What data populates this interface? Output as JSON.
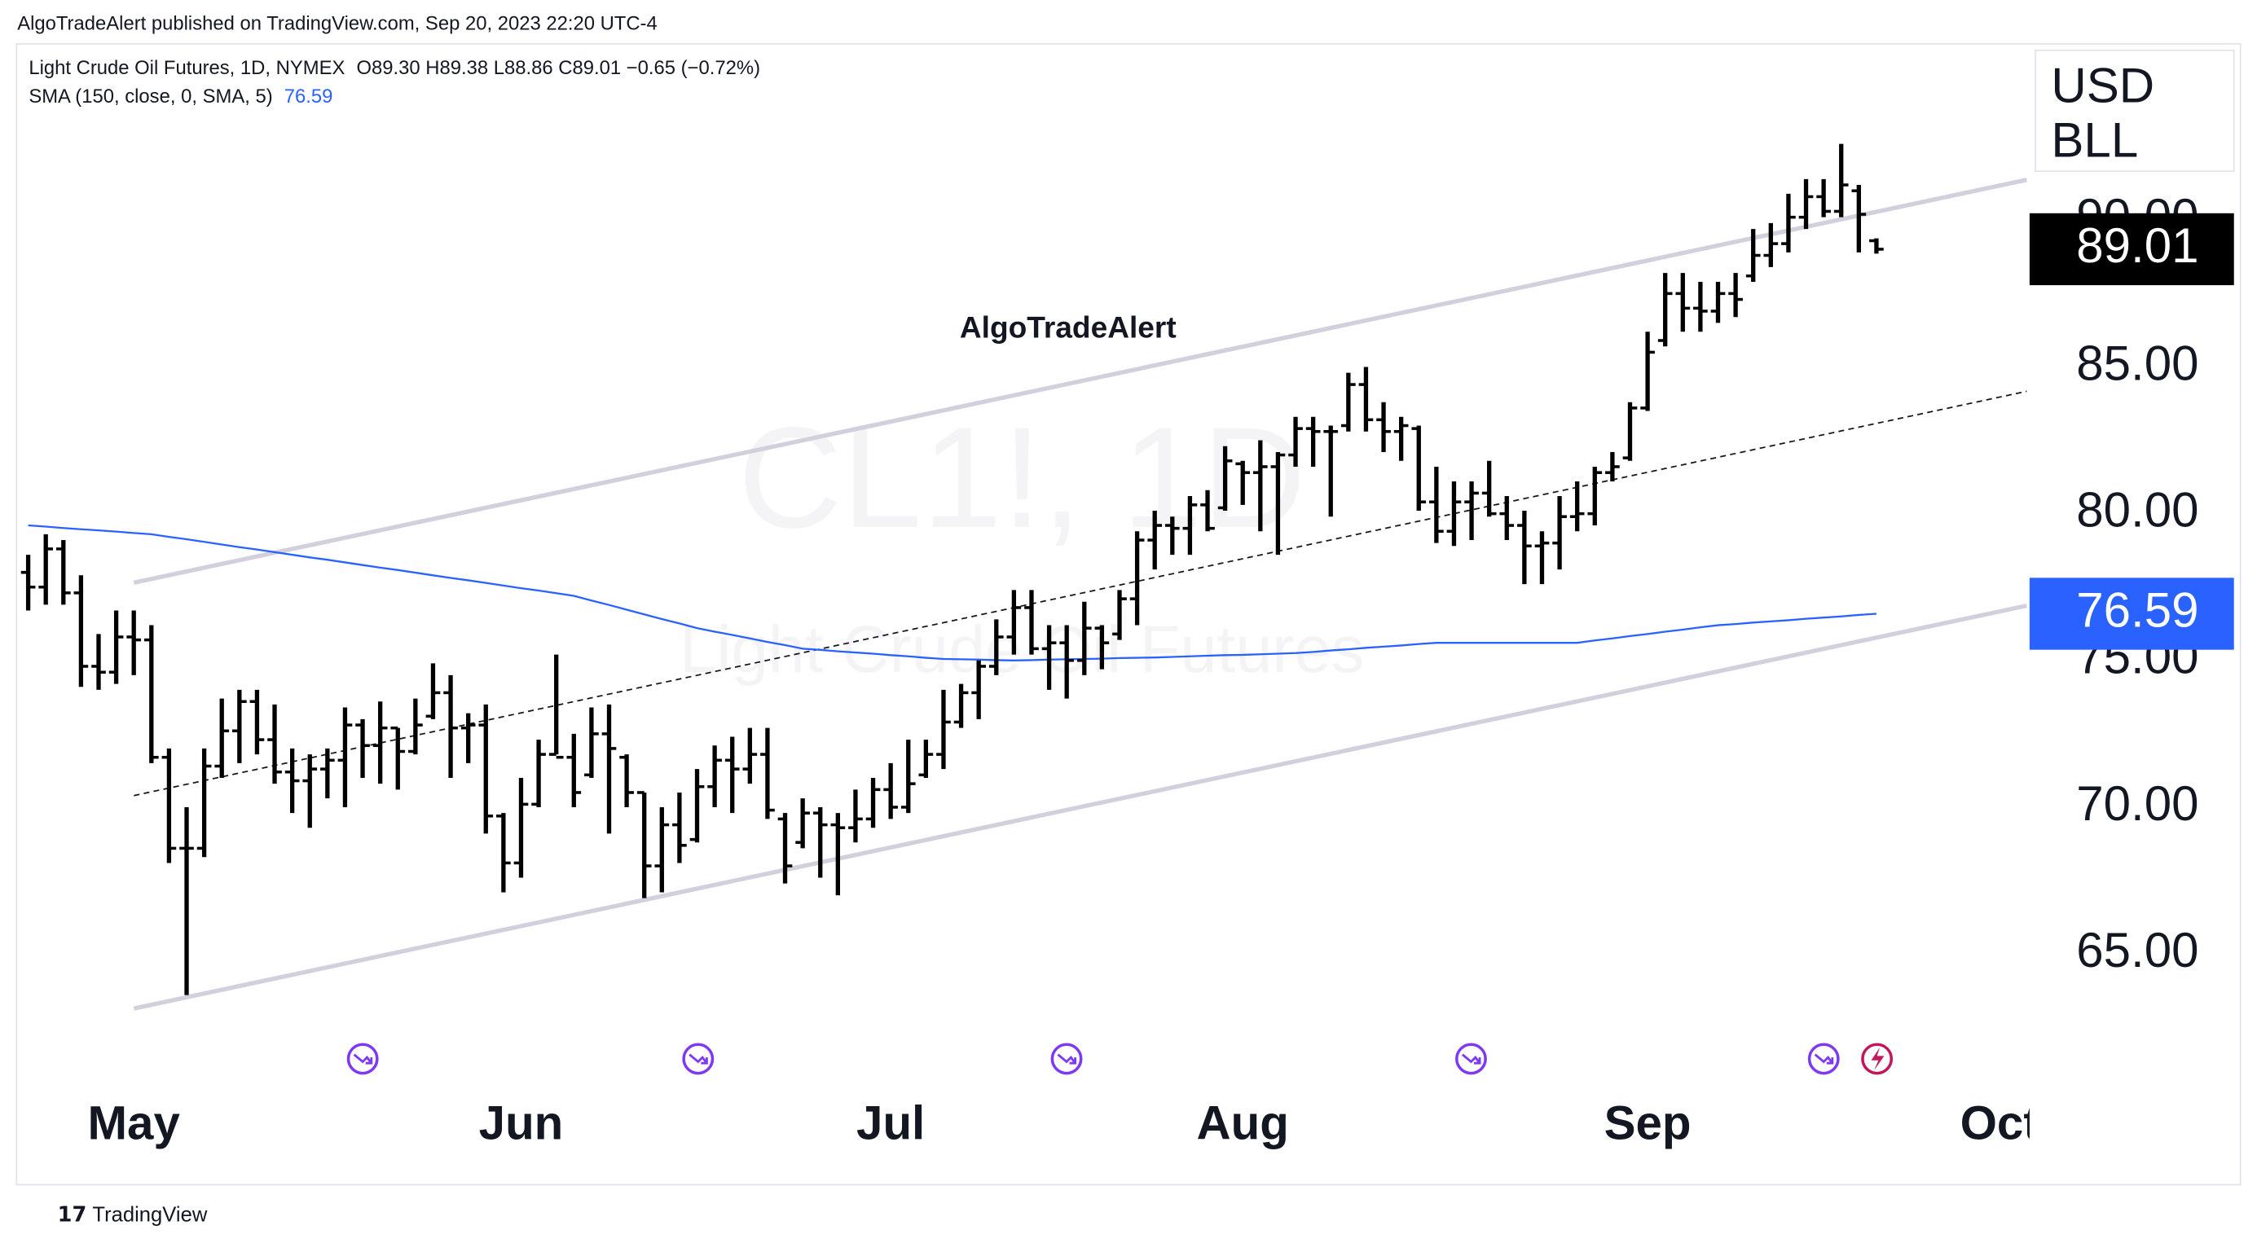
{
  "header": {
    "published": "AlgoTradeAlert published on TradingView.com, Sep 20, 2023 22:20 UTC-4",
    "brand": "TradingView"
  },
  "chart_data": {
    "type": "ohlc",
    "symbol": "Light Crude Oil Futures, 1D, NYMEX",
    "ohlc_legend": "O89.30  H89.38  L88.86  C89.01  −0.65 (−0.72%)",
    "watermark": "CL1!, 1D",
    "watermark_subtitle": "Light Crude Oil Futures",
    "annotation": "AlgoTradeAlert",
    "currency": [
      "USD",
      "BLL"
    ],
    "color": "#000000",
    "xlim": [
      -0.62,
      113.7
    ],
    "xticks": [
      {
        "value": 6,
        "label": "May"
      },
      {
        "value": 28,
        "label": "Jun"
      },
      {
        "value": 49,
        "label": "Jul"
      },
      {
        "value": 69,
        "label": "Aug"
      },
      {
        "value": 92,
        "label": "Sep"
      },
      {
        "value": 112,
        "label": "Oct"
      }
    ],
    "ylim": [
      60.25,
      96.03
    ],
    "yticks": [
      {
        "value": 65,
        "label": "65.00"
      },
      {
        "value": 70,
        "label": "70.00"
      },
      {
        "value": 75,
        "label": "75.00"
      },
      {
        "value": 80,
        "label": "80.00"
      },
      {
        "value": 85,
        "label": "85.00"
      },
      {
        "value": 90,
        "label": "90.00"
      }
    ],
    "grid": false,
    "open": [
      78.0,
      77.5,
      78.8,
      77.3,
      74.8,
      74.6,
      75.8,
      75.7,
      71.7,
      68.6,
      68.6,
      71.4,
      72.6,
      73.6,
      72.3,
      71.2,
      70.9,
      71.3,
      71.6,
      72.8,
      72.1,
      72.7,
      71.9,
      73.1,
      73.9,
      72.7,
      72.8,
      69.7,
      68.1,
      70.1,
      71.8,
      71.7,
      71.1,
      72.5,
      71.7,
      70.5,
      68.0,
      69.4,
      68.9,
      70.7,
      71.6,
      71.3,
      71.8,
      69.6,
      68.8,
      69.8,
      69.4,
      69.3,
      69.6,
      70.6,
      70.0,
      71.1,
      71.8,
      72.9,
      73.9,
      74.8,
      75.8,
      76.8,
      75.4,
      75.6,
      75.0,
      76.1,
      75.9,
      77.1,
      79.1,
      79.6,
      79.5,
      80.3,
      80.2,
      81.7,
      81.4,
      81.6,
      82.0,
      82.9,
      82.8,
      83.0,
      84.4,
      83.2,
      82.8,
      82.9,
      80.4,
      79.4,
      80.4,
      80.7,
      80.0,
      79.6,
      78.9,
      79.0,
      79.9,
      80.0,
      81.4,
      81.9,
      83.6,
      85.9,
      87.5,
      87.0,
      86.9,
      87.5,
      88.1,
      88.8,
      89.2,
      90.1,
      90.8,
      90.3,
      91.0,
      89.3
    ],
    "high": [
      78.6,
      79.3,
      79.1,
      77.9,
      75.9,
      76.7,
      76.7,
      76.2,
      72.0,
      70.0,
      72.0,
      73.7,
      74.0,
      74.0,
      73.5,
      72.0,
      71.8,
      72.0,
      73.4,
      73.0,
      73.6,
      72.7,
      73.7,
      74.9,
      74.5,
      73.2,
      73.5,
      69.8,
      71.0,
      72.3,
      75.2,
      72.5,
      73.4,
      73.5,
      71.8,
      70.5,
      70.0,
      70.5,
      71.3,
      72.1,
      72.4,
      72.7,
      72.7,
      69.8,
      70.3,
      70.0,
      69.8,
      70.6,
      71.0,
      71.5,
      72.3,
      72.3,
      74.0,
      74.2,
      75.0,
      76.4,
      77.4,
      77.4,
      76.2,
      76.2,
      77.0,
      76.2,
      77.4,
      79.4,
      80.1,
      79.9,
      80.6,
      80.8,
      82.3,
      81.8,
      82.5,
      82.1,
      83.3,
      83.3,
      83.0,
      84.8,
      85.0,
      83.8,
      83.3,
      83.0,
      81.6,
      81.1,
      81.1,
      81.8,
      80.6,
      80.1,
      79.4,
      80.6,
      81.1,
      81.6,
      82.1,
      83.8,
      86.2,
      88.2,
      88.2,
      87.9,
      87.9,
      88.2,
      89.7,
      89.9,
      90.9,
      91.4,
      91.4,
      92.6,
      91.2,
      89.38
    ],
    "low": [
      76.7,
      76.9,
      76.9,
      74.1,
      74.0,
      74.2,
      74.5,
      71.5,
      68.1,
      63.6,
      68.3,
      71.0,
      71.5,
      71.8,
      70.8,
      69.8,
      69.3,
      70.3,
      70.0,
      71.0,
      70.8,
      70.6,
      71.8,
      73.0,
      71.0,
      71.5,
      69.1,
      67.1,
      67.6,
      70.0,
      71.8,
      70.0,
      71.0,
      69.1,
      70.0,
      66.9,
      67.1,
      68.1,
      68.8,
      70.0,
      69.8,
      70.8,
      69.6,
      67.4,
      68.6,
      67.6,
      67.0,
      68.8,
      69.3,
      69.6,
      69.8,
      71.0,
      71.3,
      72.7,
      73.0,
      74.5,
      75.2,
      75.2,
      74.0,
      73.7,
      74.5,
      74.7,
      75.7,
      76.2,
      78.1,
      78.6,
      78.6,
      79.4,
      80.1,
      80.3,
      79.4,
      78.6,
      81.6,
      81.6,
      79.9,
      82.8,
      82.8,
      82.1,
      81.8,
      80.1,
      79.0,
      78.9,
      79.1,
      79.9,
      79.1,
      77.6,
      77.6,
      78.1,
      79.4,
      79.6,
      81.1,
      81.8,
      83.5,
      85.7,
      86.2,
      86.2,
      86.5,
      86.7,
      87.9,
      88.4,
      88.9,
      89.7,
      90.1,
      90.1,
      88.9,
      88.86
    ],
    "close": [
      77.5,
      78.8,
      77.3,
      74.8,
      74.6,
      75.8,
      75.7,
      71.7,
      68.6,
      68.6,
      71.4,
      72.6,
      73.6,
      72.3,
      71.2,
      70.9,
      71.3,
      71.6,
      72.8,
      72.1,
      72.7,
      71.9,
      72.8,
      73.9,
      72.7,
      72.8,
      69.7,
      68.1,
      70.1,
      71.8,
      71.7,
      70.5,
      72.5,
      72.0,
      70.5,
      68.0,
      69.4,
      68.7,
      70.7,
      71.6,
      71.3,
      71.8,
      69.9,
      68.0,
      69.8,
      69.4,
      69.3,
      69.6,
      70.6,
      70.0,
      70.8,
      71.8,
      72.9,
      73.9,
      74.8,
      75.8,
      76.8,
      75.4,
      75.6,
      75.0,
      76.1,
      75.6,
      77.1,
      79.1,
      79.6,
      79.5,
      80.3,
      79.5,
      81.8,
      81.4,
      81.6,
      82.0,
      82.9,
      82.8,
      82.8,
      84.4,
      83.2,
      82.8,
      83.0,
      80.4,
      79.4,
      80.4,
      80.7,
      80.0,
      79.6,
      78.9,
      79.0,
      79.9,
      80.0,
      81.4,
      81.6,
      83.6,
      85.5,
      87.5,
      87.0,
      86.9,
      87.5,
      87.3,
      88.8,
      89.2,
      90.1,
      90.8,
      90.3,
      91.2,
      90.2,
      89.01
    ],
    "series": [
      {
        "name": "SMA (150, close, 0, SMA, 5)",
        "color": "#2962ff",
        "values": [
          79.6,
          79.56,
          79.51,
          79.47,
          79.43,
          79.39,
          79.34,
          79.3,
          79.21,
          79.13,
          79.04,
          78.95,
          78.86,
          78.78,
          78.69,
          78.6,
          78.51,
          78.43,
          78.34,
          78.25,
          78.16,
          78.08,
          77.99,
          77.9,
          77.81,
          77.73,
          77.64,
          77.55,
          77.46,
          77.38,
          77.29,
          77.2,
          77.04,
          76.89,
          76.73,
          76.57,
          76.41,
          76.26,
          76.1,
          75.98,
          75.87,
          75.75,
          75.63,
          75.52,
          75.4,
          75.36,
          75.31,
          75.27,
          75.23,
          75.18,
          75.14,
          75.09,
          75.05,
          75.04,
          75.03,
          75.01,
          75.0,
          75.01,
          75.03,
          75.04,
          75.05,
          75.06,
          75.08,
          75.09,
          75.1,
          75.12,
          75.14,
          75.16,
          75.18,
          75.19,
          75.21,
          75.23,
          75.25,
          75.29,
          75.34,
          75.38,
          75.43,
          75.47,
          75.51,
          75.56,
          75.6,
          75.6,
          75.6,
          75.6,
          75.6,
          75.6,
          75.6,
          75.6,
          75.6,
          75.68,
          75.75,
          75.83,
          75.9,
          75.98,
          76.05,
          76.13,
          76.2,
          76.24,
          76.29,
          76.33,
          76.37,
          76.42,
          76.46,
          76.5,
          76.55,
          76.59
        ]
      }
    ]
  }
}
